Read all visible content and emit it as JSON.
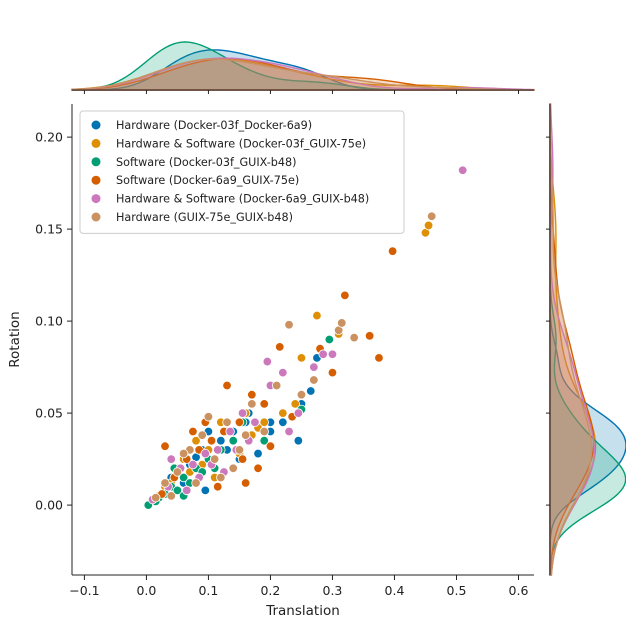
{
  "chart_data": {
    "type": "scatter",
    "subtype": "jointplot",
    "xlabel": "Translation",
    "ylabel": "Rotation",
    "xlim": [
      -0.12,
      0.625
    ],
    "ylim": [
      -0.038,
      0.218
    ],
    "x_ticks": [
      "−0.1",
      "0.0",
      "0.1",
      "0.2",
      "0.3",
      "0.4",
      "0.5",
      "0.6"
    ],
    "x_tick_values": [
      -0.1,
      0.0,
      0.1,
      0.2,
      0.3,
      0.4,
      0.5,
      0.6
    ],
    "y_ticks": [
      "0.00",
      "0.05",
      "0.10",
      "0.15",
      "0.20"
    ],
    "y_tick_values": [
      0.0,
      0.05,
      0.1,
      0.15,
      0.2
    ],
    "grid": false,
    "legend_position": "upper-left",
    "marginals": "kde",
    "series": [
      {
        "name": "Hardware (Docker-03f_Docker-6a9)",
        "color": "#0173b2",
        "points": [
          [
            0.03,
            0.008
          ],
          [
            0.05,
            0.018
          ],
          [
            0.07,
            0.022
          ],
          [
            0.09,
            0.03
          ],
          [
            0.1,
            0.04
          ],
          [
            0.12,
            0.035
          ],
          [
            0.14,
            0.04
          ],
          [
            0.16,
            0.045
          ],
          [
            0.18,
            0.028
          ],
          [
            0.2,
            0.04
          ],
          [
            0.22,
            0.045
          ],
          [
            0.245,
            0.035
          ],
          [
            0.265,
            0.062
          ],
          [
            0.275,
            0.08
          ],
          [
            0.06,
            0.012
          ],
          [
            0.08,
            0.026
          ],
          [
            0.11,
            0.02
          ],
          [
            0.13,
            0.03
          ],
          [
            0.15,
            0.025
          ],
          [
            0.04,
            0.015
          ],
          [
            0.165,
            0.05
          ],
          [
            0.095,
            0.008
          ],
          [
            0.2,
            0.045
          ],
          [
            0.25,
            0.055
          ]
        ]
      },
      {
        "name": "Hardware & Software (Docker-03f_GUIX-75e)",
        "color": "#de8f05",
        "points": [
          [
            0.02,
            0.005
          ],
          [
            0.04,
            0.012
          ],
          [
            0.06,
            0.025
          ],
          [
            0.08,
            0.035
          ],
          [
            0.1,
            0.03
          ],
          [
            0.12,
            0.045
          ],
          [
            0.14,
            0.035
          ],
          [
            0.16,
            0.05
          ],
          [
            0.18,
            0.042
          ],
          [
            0.22,
            0.05
          ],
          [
            0.25,
            0.08
          ],
          [
            0.275,
            0.103
          ],
          [
            0.31,
            0.093
          ],
          [
            0.45,
            0.148
          ],
          [
            0.455,
            0.152
          ],
          [
            0.07,
            0.018
          ],
          [
            0.09,
            0.022
          ],
          [
            0.11,
            0.015
          ],
          [
            0.13,
            0.04
          ],
          [
            0.15,
            0.028
          ],
          [
            0.05,
            0.02
          ],
          [
            0.17,
            0.038
          ],
          [
            0.19,
            0.045
          ],
          [
            0.24,
            0.055
          ],
          [
            0.03,
            0.01
          ]
        ]
      },
      {
        "name": "Software (Docker-03f_GUIX-b48)",
        "color": "#029e73",
        "points": [
          [
            0.003,
            0.0
          ],
          [
            0.02,
            0.004
          ],
          [
            0.04,
            0.01
          ],
          [
            0.06,
            0.015
          ],
          [
            0.08,
            0.02
          ],
          [
            0.1,
            0.025
          ],
          [
            0.12,
            0.03
          ],
          [
            0.14,
            0.035
          ],
          [
            0.03,
            0.006
          ],
          [
            0.05,
            0.008
          ],
          [
            0.07,
            0.012
          ],
          [
            0.09,
            0.018
          ],
          [
            0.19,
            0.035
          ],
          [
            0.25,
            0.052
          ],
          [
            0.295,
            0.09
          ],
          [
            0.015,
            0.002
          ],
          [
            0.06,
            0.005
          ],
          [
            0.11,
            0.02
          ],
          [
            0.155,
            0.045
          ],
          [
            0.045,
            0.02
          ]
        ]
      },
      {
        "name": "Software (Docker-6a9_GUIX-75e)",
        "color": "#d55e00",
        "points": [
          [
            0.025,
            0.006
          ],
          [
            0.045,
            0.015
          ],
          [
            0.065,
            0.025
          ],
          [
            0.085,
            0.03
          ],
          [
            0.105,
            0.035
          ],
          [
            0.125,
            0.04
          ],
          [
            0.13,
            0.065
          ],
          [
            0.15,
            0.045
          ],
          [
            0.17,
            0.06
          ],
          [
            0.19,
            0.055
          ],
          [
            0.215,
            0.086
          ],
          [
            0.235,
            0.048
          ],
          [
            0.28,
            0.085
          ],
          [
            0.3,
            0.072
          ],
          [
            0.32,
            0.114
          ],
          [
            0.36,
            0.092
          ],
          [
            0.375,
            0.08
          ],
          [
            0.397,
            0.138
          ],
          [
            0.03,
            0.032
          ],
          [
            0.155,
            0.025
          ],
          [
            0.16,
            0.012
          ],
          [
            0.18,
            0.02
          ],
          [
            0.2,
            0.032
          ],
          [
            0.075,
            0.04
          ],
          [
            0.115,
            0.01
          ],
          [
            0.095,
            0.045
          ]
        ]
      },
      {
        "name": "Hardware & Software (Docker-6a9_GUIX-b48)",
        "color": "#cc78bc",
        "points": [
          [
            0.01,
            0.003
          ],
          [
            0.035,
            0.01
          ],
          [
            0.055,
            0.02
          ],
          [
            0.075,
            0.022
          ],
          [
            0.095,
            0.028
          ],
          [
            0.115,
            0.03
          ],
          [
            0.135,
            0.04
          ],
          [
            0.155,
            0.05
          ],
          [
            0.175,
            0.045
          ],
          [
            0.2,
            0.065
          ],
          [
            0.22,
            0.072
          ],
          [
            0.245,
            0.05
          ],
          [
            0.27,
            0.075
          ],
          [
            0.285,
            0.082
          ],
          [
            0.3,
            0.082
          ],
          [
            0.51,
            0.182
          ],
          [
            0.04,
            0.025
          ],
          [
            0.065,
            0.008
          ],
          [
            0.085,
            0.015
          ],
          [
            0.105,
            0.022
          ],
          [
            0.125,
            0.018
          ],
          [
            0.145,
            0.03
          ],
          [
            0.165,
            0.035
          ],
          [
            0.195,
            0.078
          ],
          [
            0.23,
            0.04
          ]
        ]
      },
      {
        "name": "Hardware (GUIX-75e_GUIX-b48)",
        "color": "#ca9161",
        "points": [
          [
            0.015,
            0.004
          ],
          [
            0.03,
            0.012
          ],
          [
            0.05,
            0.018
          ],
          [
            0.07,
            0.03
          ],
          [
            0.09,
            0.038
          ],
          [
            0.11,
            0.025
          ],
          [
            0.13,
            0.045
          ],
          [
            0.15,
            0.03
          ],
          [
            0.17,
            0.055
          ],
          [
            0.19,
            0.04
          ],
          [
            0.21,
            0.065
          ],
          [
            0.23,
            0.098
          ],
          [
            0.25,
            0.06
          ],
          [
            0.31,
            0.095
          ],
          [
            0.315,
            0.099
          ],
          [
            0.335,
            0.091
          ],
          [
            0.46,
            0.157
          ],
          [
            0.04,
            0.005
          ],
          [
            0.06,
            0.028
          ],
          [
            0.08,
            0.012
          ],
          [
            0.1,
            0.048
          ],
          [
            0.12,
            0.015
          ],
          [
            0.14,
            0.02
          ],
          [
            0.16,
            0.038
          ],
          [
            0.27,
            0.068
          ]
        ]
      }
    ]
  }
}
